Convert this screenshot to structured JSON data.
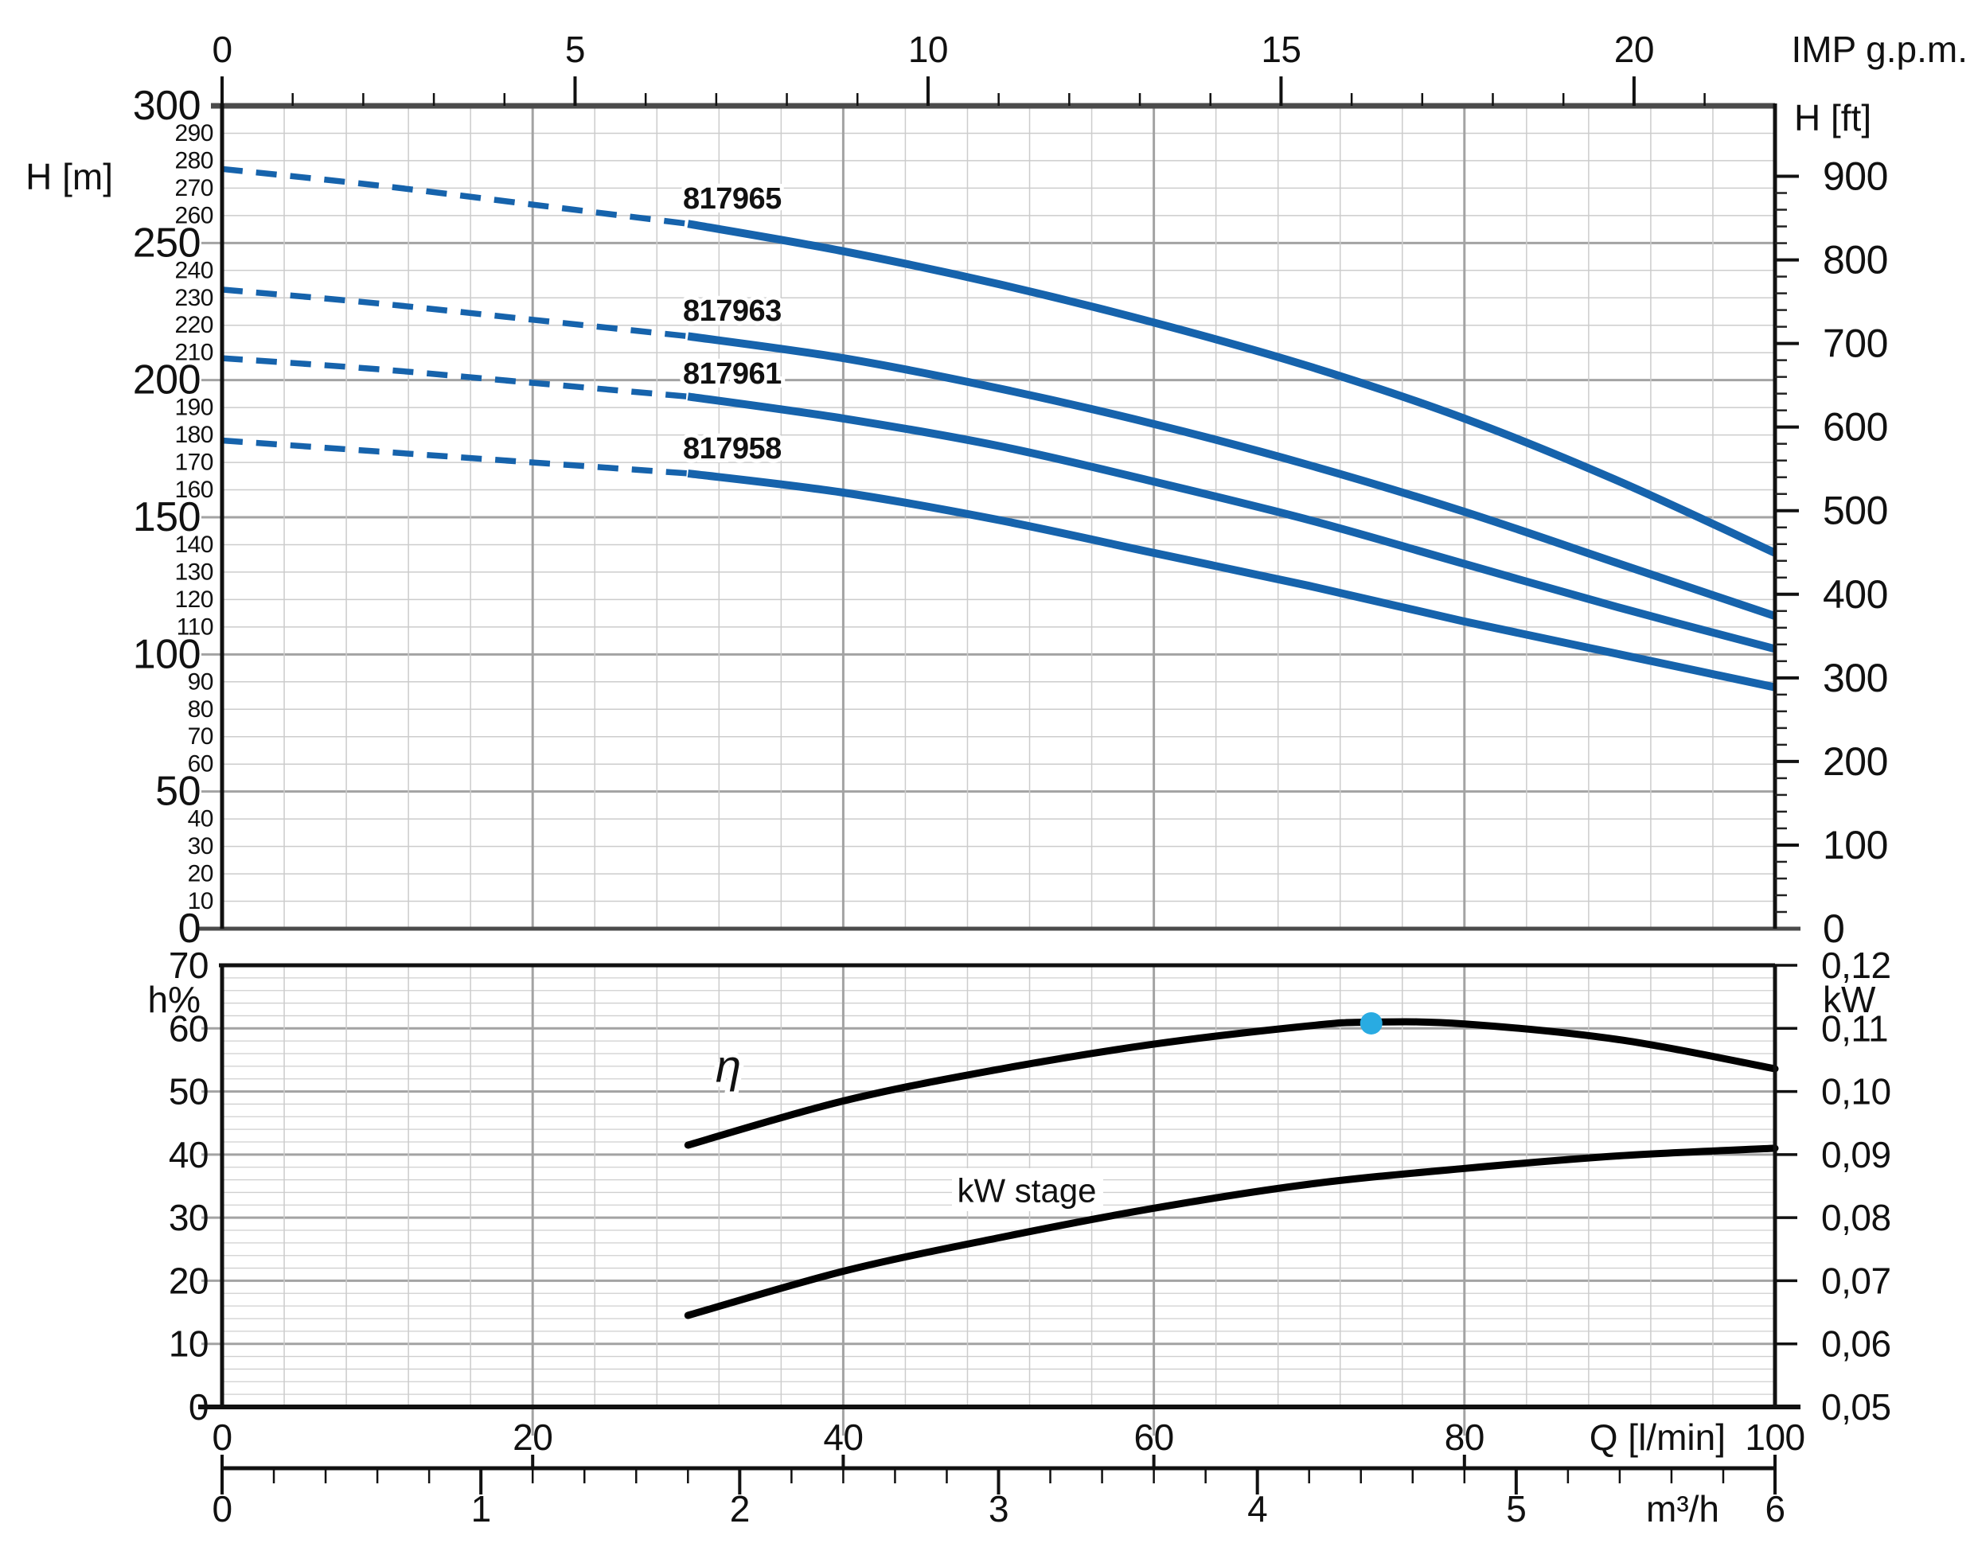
{
  "colors": {
    "curve_blue": "#1663ac",
    "curve_label_navy": "#153a6d",
    "operating_point_cyan": "#29abe2",
    "black_curve": "#000000",
    "grid_minor": "#cccccc",
    "grid_major": "#a3a3a3",
    "frame_dark_gray": "#4b4b4b",
    "axis_black": "#111111"
  },
  "chart_data": [
    {
      "type": "line",
      "title": "Pump head curves",
      "top_axis": {
        "unit_label": "IMP g.p.m.",
        "tick_labels": [
          "0",
          "5",
          "10",
          "15",
          "20"
        ],
        "tick_values": [
          0,
          5,
          10,
          15,
          20
        ],
        "minor_tick_step": 1,
        "max_minor_tick": 21,
        "lmin_per_unit": 4.54609
      },
      "left_axis": {
        "label": "H [m]",
        "min": 0,
        "max": 300,
        "major_step": 50,
        "major_tick_labels": [
          "300",
          "250",
          "200",
          "150",
          "100",
          "50",
          "0"
        ],
        "minor_label_step": 10
      },
      "right_axis": {
        "label": "H [ft]",
        "tick_labels": [
          "900",
          "800",
          "700",
          "600",
          "500",
          "400",
          "300",
          "200",
          "100",
          "0"
        ],
        "major_step_ft": 100,
        "minor_step_ft": 20,
        "m_per_ft": 0.3048
      },
      "x_axis": {
        "unit": "l/min",
        "min": 0,
        "max": 100,
        "major_grid_step": 20,
        "minor_grid_step": 4
      },
      "grid": true,
      "legend_position": "on-curve",
      "series": [
        {
          "name": "817965",
          "dashed_until": 30,
          "x": [
            0,
            10,
            20,
            30,
            40,
            50,
            60,
            70,
            80,
            90,
            100
          ],
          "h_m": [
            277,
            271,
            264,
            257,
            247,
            235,
            221,
            205,
            186,
            163,
            137
          ]
        },
        {
          "name": "817963",
          "dashed_until": 30,
          "x": [
            0,
            10,
            20,
            30,
            40,
            50,
            60,
            70,
            80,
            90,
            100
          ],
          "h_m": [
            233,
            228,
            222,
            216,
            208,
            197,
            184,
            169,
            152,
            133,
            114
          ]
        },
        {
          "name": "817961",
          "dashed_until": 30,
          "x": [
            0,
            10,
            20,
            30,
            40,
            50,
            60,
            70,
            80,
            90,
            100
          ],
          "h_m": [
            208,
            204,
            199,
            194,
            186,
            176,
            163,
            149,
            133,
            117,
            102
          ]
        },
        {
          "name": "817958",
          "dashed_until": 30,
          "x": [
            0,
            10,
            20,
            30,
            40,
            50,
            60,
            70,
            80,
            90,
            100
          ],
          "h_m": [
            178,
            174,
            170,
            166,
            159,
            149,
            137,
            125,
            112,
            100,
            88
          ]
        }
      ]
    },
    {
      "type": "line",
      "title": "Efficiency and stage power",
      "left_axis": {
        "label": "h%",
        "min": 0,
        "max": 70,
        "major_step": 10,
        "major_tick_labels": [
          "70",
          "60",
          "50",
          "40",
          "30",
          "20",
          "10",
          "0"
        ],
        "minor_grid_step": 2
      },
      "right_axis": {
        "label": "kW",
        "min_kw": 0.05,
        "max_kw": 0.12,
        "tick_labels": [
          "0,12",
          "0,11",
          "0,10",
          "0,09",
          "0,08",
          "0,07",
          "0,06",
          "0,05"
        ]
      },
      "grid": true,
      "series": [
        {
          "name": "η",
          "axis": "left",
          "x": [
            30,
            40,
            50,
            60,
            70,
            74,
            80,
            90,
            100
          ],
          "y_pct": [
            41.5,
            48.5,
            53.5,
            57.5,
            60.4,
            61,
            60.7,
            58.2,
            53.6
          ]
        },
        {
          "name": "kW stage",
          "axis": "right",
          "x": [
            30,
            40,
            50,
            60,
            70,
            80,
            90,
            100
          ],
          "y_kw": [
            0.0645,
            0.0715,
            0.0768,
            0.0815,
            0.0853,
            0.0878,
            0.0898,
            0.091
          ]
        }
      ],
      "operating_point": {
        "x": 74,
        "y_pct": 60.8,
        "series": "η"
      },
      "bottom_axis": {
        "q_unit_label": "Q [l/min]",
        "q_tick_labels": [
          "0",
          "20",
          "40",
          "60",
          "80",
          "100"
        ],
        "q_tick_values": [
          0,
          20,
          40,
          60,
          80,
          100
        ],
        "m3h_unit_label": "m³/h",
        "m3h_tick_labels": [
          "0",
          "1",
          "2",
          "3",
          "4",
          "5",
          "6"
        ],
        "m3h_tick_values": [
          0,
          1,
          2,
          3,
          4,
          5,
          6
        ],
        "m3h_minor_step": 0.2
      }
    }
  ]
}
